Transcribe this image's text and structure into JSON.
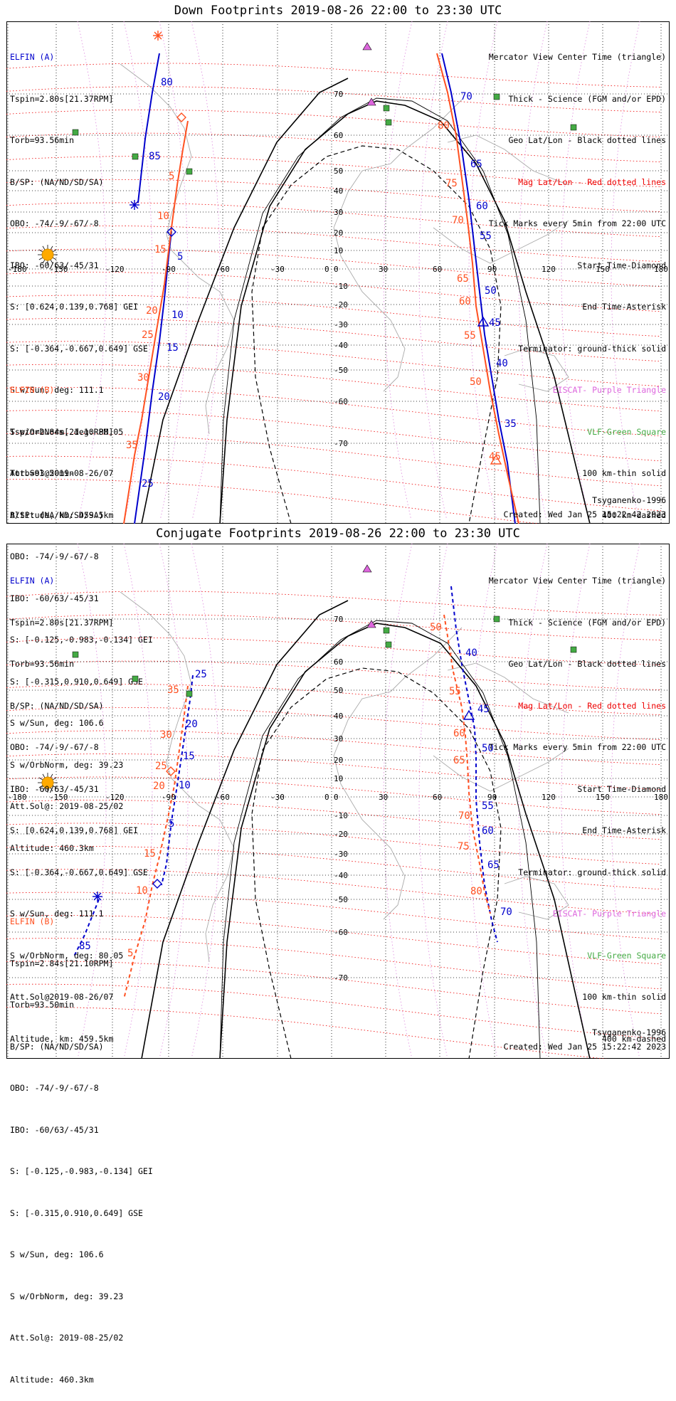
{
  "colors": {
    "elfin_a": "#0000cc",
    "elfin_b": "#ff5020",
    "mag_grid": "#ee0000",
    "geo_grid": "#000000",
    "eiscat": "#dd66dd",
    "vlf": "#44aa44",
    "sun": "#ffaa00"
  },
  "panels": [
    {
      "id": "down",
      "title": "Down Footprints 2019-08-26 22:00 to 23:30 UTC",
      "elfin_a": {
        "name": "ELFIN (A)",
        "lines": [
          "Tspin=2.80s[21.37RPM]",
          "Torb=93.56min",
          "B/SP: (NA/ND/SD/SA)",
          "OBO: -74/-9/-67/-8",
          "IBO: -60/63/-45/31",
          "S: [0.624,0.139,0.768] GEI",
          "S: [-0.364,-0.667,0.649] GSE",
          "S w/Sun, deg: 111.1",
          "S w/OrbNorm, deg: 80.05",
          "Att.Sol@2019-08-26/07",
          "Altitude, km: 459.5km"
        ]
      },
      "elfin_b": {
        "name": "ELFIN (B)",
        "lines": [
          "Tspin=2.84s[21.10RPM]",
          "Torb=93.50min",
          "B/SP: (NA/ND/SD/SA)",
          "OBO: -74/-9/-67/-8",
          "IBO: -60/63/-45/31",
          "S: [-0.125,-0.983,-0.134] GEI",
          "S: [-0.315,0.910,0.649] GSE",
          "S w/Sun, deg: 106.6",
          "S w/OrbNorm, deg: 39.23",
          "Att.Sol@: 2019-08-25/02",
          "Altitude: 460.3km"
        ]
      },
      "legend": [
        {
          "text": "Mercator View Center Time (triangle)",
          "color": "#000000"
        },
        {
          "text": "Thick - Science (FGM and/or EPD)",
          "color": "#000000"
        },
        {
          "text": "Geo Lat/Lon - Black dotted lines",
          "color": "#000000"
        },
        {
          "text": "Mag Lat/Lon - Red dotted lines",
          "color": "#ee0000"
        },
        {
          "text": "Tick Marks every 5min from 22:00 UTC",
          "color": "#000000"
        },
        {
          "text": "Start Time-Diamond",
          "color": "#000000"
        },
        {
          "text": "End Time-Asterisk",
          "color": "#000000"
        },
        {
          "text": "Terminator: ground-thick solid",
          "color": "#000000"
        },
        {
          "text": "EISCAT- Purple Triangle",
          "color": "#dd66dd"
        },
        {
          "text": "VLF-Green Square",
          "color": "#44aa44"
        },
        {
          "text": "100 km-thin solid",
          "color": "#000000"
        },
        {
          "text": "400 km-dashed",
          "color": "#000000"
        }
      ],
      "model": "Tsyganenko-1996",
      "created": "Created: Wed Jan 25 15:22:42 2023",
      "lon_labels": [
        "-180",
        "-150",
        "-120",
        "-90",
        "-60",
        "-30",
        "0",
        "30",
        "60",
        "90",
        "120",
        "150",
        "180"
      ],
      "lat_labels": [
        "70",
        "60",
        "50",
        "40",
        "30",
        "20",
        "10",
        "0",
        "-10",
        "-20",
        "-30",
        "-40",
        "-50",
        "-60",
        "-70"
      ],
      "track_a_labels": [
        "80",
        "85",
        "5",
        "10",
        "15",
        "20",
        "25",
        "70",
        "65",
        "60",
        "55",
        "50",
        "45",
        "40",
        "35"
      ],
      "track_b_labels": [
        "5",
        "10",
        "15",
        "20",
        "25",
        "30",
        "35",
        "80",
        "75",
        "70",
        "65",
        "60",
        "55",
        "50",
        "45"
      ]
    },
    {
      "id": "conj",
      "title": "Conjugate Footprints 2019-08-26 22:00 to 23:30 UTC",
      "elfin_a": {
        "name": "ELFIN (A)",
        "lines": [
          "Tspin=2.80s[21.37RPM]",
          "Torb=93.56min",
          "B/SP: (NA/ND/SD/SA)",
          "OBO: -74/-9/-67/-8",
          "IBO: -60/63/-45/31",
          "S: [0.624,0.139,0.768] GEI",
          "S: [-0.364,-0.667,0.649] GSE",
          "S w/Sun, deg: 111.1",
          "S w/OrbNorm, deg: 80.05",
          "Att.Sol@2019-08-26/07",
          "Altitude, km: 459.5km"
        ]
      },
      "elfin_b": {
        "name": "ELFIN (B)",
        "lines": [
          "Tspin=2.84s[21.10RPM]",
          "Torb=93.50min",
          "B/SP: (NA/ND/SD/SA)",
          "OBO: -74/-9/-67/-8",
          "IBO: -60/63/-45/31",
          "S: [-0.125,-0.983,-0.134] GEI",
          "S: [-0.315,0.910,0.649] GSE",
          "S w/Sun, deg: 106.6",
          "S w/OrbNorm, deg: 39.23",
          "Att.Sol@: 2019-08-25/02",
          "Altitude: 460.3km"
        ]
      },
      "legend": [
        {
          "text": "Mercator View Center Time (triangle)",
          "color": "#000000"
        },
        {
          "text": "Thick - Science (FGM and/or EPD)",
          "color": "#000000"
        },
        {
          "text": "Geo Lat/Lon - Black dotted lines",
          "color": "#000000"
        },
        {
          "text": "Mag Lat/Lon - Red dotted lines",
          "color": "#ee0000"
        },
        {
          "text": "Tick Marks every 5min from 22:00 UTC",
          "color": "#000000"
        },
        {
          "text": "Start Time-Diamond",
          "color": "#000000"
        },
        {
          "text": "End Time-Asterisk",
          "color": "#000000"
        },
        {
          "text": "Terminator: ground-thick solid",
          "color": "#000000"
        },
        {
          "text": "EISCAT- Purple Triangle",
          "color": "#dd66dd"
        },
        {
          "text": "VLF-Green Square",
          "color": "#44aa44"
        },
        {
          "text": "100 km-thin solid",
          "color": "#000000"
        },
        {
          "text": "400 km-dashed",
          "color": "#000000"
        }
      ],
      "model": "Tsyganenko-1996",
      "created": "Created: Wed Jan 25 15:22:42 2023",
      "lon_labels": [
        "-180",
        "-150",
        "-120",
        "-90",
        "-60",
        "-30",
        "0",
        "30",
        "60",
        "90",
        "120",
        "150",
        "180"
      ],
      "lat_labels": [
        "70",
        "60",
        "50",
        "40",
        "30",
        "20",
        "10",
        "0",
        "-10",
        "-20",
        "-30",
        "-40",
        "-50",
        "-60",
        "-70"
      ],
      "track_a_labels": [
        "25",
        "20",
        "15",
        "10",
        "5",
        "85",
        "40",
        "45",
        "50",
        "55",
        "60",
        "65",
        "70"
      ],
      "track_b_labels": [
        "35",
        "30",
        "25",
        "20",
        "15",
        "10",
        "5",
        "50",
        "55",
        "60",
        "65",
        "70",
        "75",
        "80"
      ]
    }
  ]
}
